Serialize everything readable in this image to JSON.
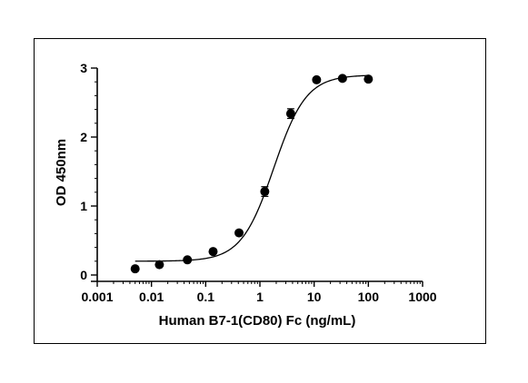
{
  "chart_data": {
    "type": "scatter",
    "title": "",
    "xlabel": "Human B7-1(CD80) Fc (ng/mL)",
    "ylabel": "OD 450nm",
    "x_scale": "log",
    "xlim": [
      0.001,
      1000
    ],
    "ylim": [
      0,
      3
    ],
    "x_ticks": [
      0.001,
      0.01,
      0.1,
      1,
      10,
      100,
      1000
    ],
    "x_tick_labels": [
      "0.001",
      "0.01",
      "0.1",
      "1",
      "10",
      "100",
      "1000"
    ],
    "y_ticks": [
      0,
      1,
      2,
      3
    ],
    "y_tick_labels": [
      "0",
      "1",
      "2",
      "3"
    ],
    "grid": false,
    "marker_color": "#000000",
    "line_color": "#000000",
    "series": [
      {
        "x": [
          0.005,
          0.014,
          0.046,
          0.137,
          0.412,
          1.23,
          3.7,
          11.1,
          33.3,
          100
        ],
        "y": [
          0.09,
          0.15,
          0.22,
          0.34,
          0.61,
          1.21,
          2.34,
          2.83,
          2.85,
          2.84
        ],
        "y_err": [
          0.02,
          0.02,
          0.02,
          0.03,
          0.03,
          0.07,
          0.07,
          0.03,
          0.03,
          0.03
        ]
      }
    ],
    "fit": {
      "model": "4PL",
      "bottom": 0.2,
      "top": 2.9,
      "ec50": 1.8,
      "hill": 1.45,
      "x_range": [
        0.005,
        100
      ]
    }
  }
}
